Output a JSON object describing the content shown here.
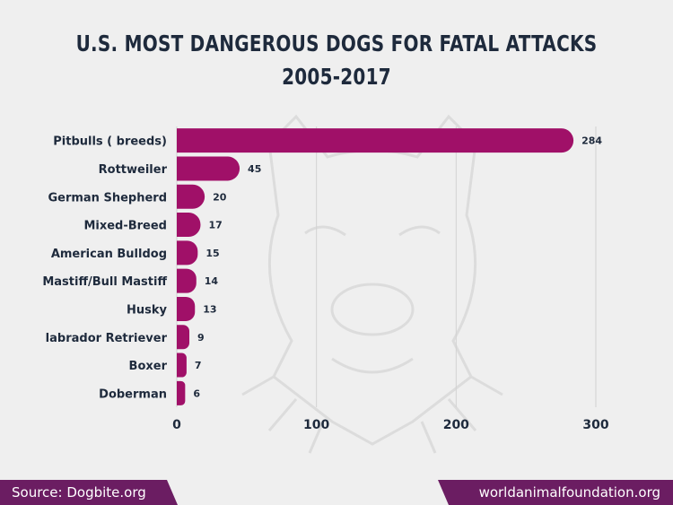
{
  "title": {
    "line1": "U.S. MOST DANGEROUS DOGS FOR FATAL ATTACKS",
    "line2": "2005-2017"
  },
  "colors": {
    "bar": "#a01068",
    "title": "#1e2a3c",
    "footer": "#6b1d62",
    "watermark": "#dcdcdc"
  },
  "watermark": "dog-head-watermark",
  "footer": {
    "source": "Source: Dogbite.org",
    "site": "worldanimalfoundation.org"
  },
  "chart_data": {
    "type": "bar",
    "orientation": "horizontal",
    "categories": [
      "Pitbulls ( breeds)",
      "Rottweiler",
      "German Shepherd",
      "Mixed-Breed",
      "American Bulldog",
      "Mastiff/Bull Mastiff",
      "Husky",
      "labrador Retriever",
      "Boxer",
      "Doberman"
    ],
    "values": [
      284,
      45,
      20,
      17,
      15,
      14,
      13,
      9,
      7,
      6
    ],
    "xlim": [
      0,
      300
    ],
    "xticks": [
      0,
      100,
      200,
      300
    ],
    "grid": true,
    "data_labels": true
  }
}
